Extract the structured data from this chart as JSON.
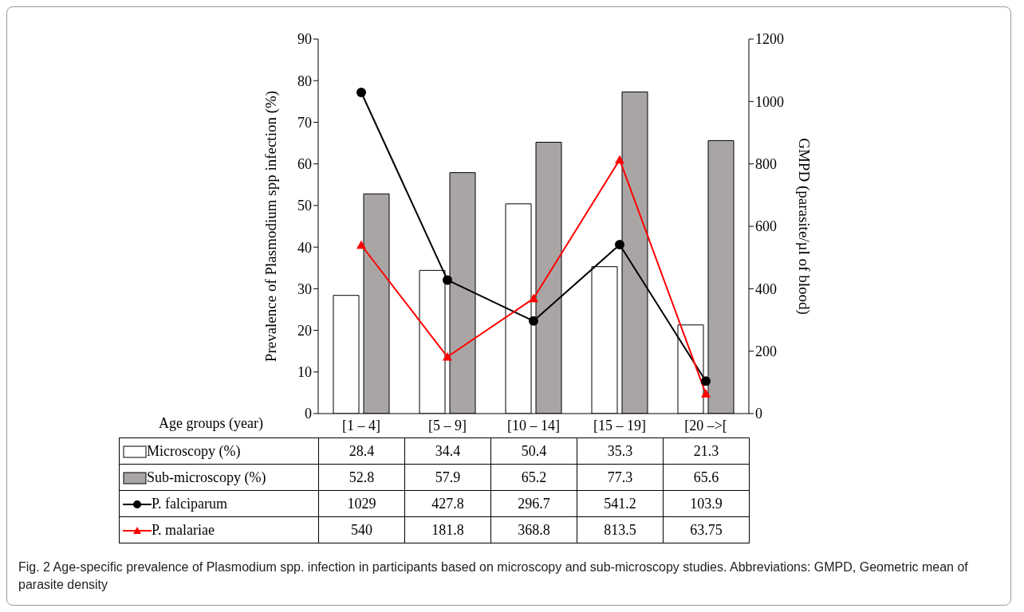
{
  "chart_data": {
    "type": "bar",
    "xlabel": "Age groups (year)",
    "ylabel": "Prevalence of Plasmodium spp infection (%)",
    "y2label": "GMPD (parasite/µl of blood)",
    "categories": [
      "[1 – 4]",
      "[5 – 9]",
      "[10 – 14]",
      "[15 – 19]",
      "[20 –>["
    ],
    "series": [
      {
        "name": "Microscopy (%)",
        "color": "#ffffff",
        "values": [
          28.4,
          34.4,
          50.4,
          35.3,
          21.3
        ]
      },
      {
        "name": "Sub-microscopy (%)",
        "color": "#aaa5a5",
        "values": [
          52.8,
          57.9,
          65.2,
          77.3,
          65.6
        ]
      },
      {
        "name": "P. falciparum",
        "type": "line",
        "axis": "y2",
        "color": "#000000",
        "marker": "circle",
        "values": [
          1029,
          427.8,
          296.7,
          541.2,
          103.9
        ]
      },
      {
        "name": "P. malariae",
        "type": "line",
        "axis": "y2",
        "color": "#ff0000",
        "marker": "triangle",
        "values": [
          540,
          181.8,
          368.8,
          813.5,
          63.75
        ]
      }
    ],
    "ylim": [
      0,
      90
    ],
    "yticks": [
      0,
      10,
      20,
      30,
      40,
      50,
      60,
      70,
      80,
      90
    ],
    "y2lim": [
      0,
      1200
    ],
    "y2ticks": [
      0,
      200,
      400,
      600,
      800,
      1000,
      1200
    ],
    "grid": false,
    "legend": "bottom",
    "data_labels": true,
    "annotations": [
      "Fig. 2 Age-specific prevalence of Plasmodium spp. infection in participants based on microscopy and sub-microscopy studies. Abbreviations: GMPD, Geometric mean of parasite density"
    ]
  }
}
